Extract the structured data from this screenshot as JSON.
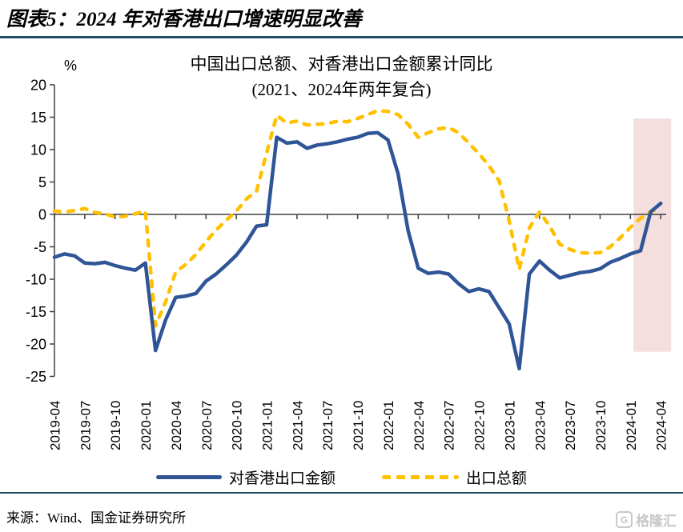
{
  "header": {
    "title": "图表5：2024 年对香港出口增速明显改善"
  },
  "chart_data": {
    "type": "line",
    "title_line1": "中国出口总额、对香港出口金额累计同比",
    "title_line2": "(2021、2024年两年复合)",
    "unit_label": "%",
    "ylim": [
      -25,
      20
    ],
    "ytick_step": 5,
    "grid": "off",
    "legend_position": "bottom",
    "x": [
      "2019-04",
      "2019-05",
      "2019-06",
      "2019-07",
      "2019-08",
      "2019-09",
      "2019-10",
      "2019-11",
      "2019-12",
      "2020-01",
      "2020-02",
      "2020-03",
      "2020-04",
      "2020-05",
      "2020-06",
      "2020-07",
      "2020-08",
      "2020-09",
      "2020-10",
      "2020-11",
      "2020-12",
      "2021-01",
      "2021-02",
      "2021-03",
      "2021-04",
      "2021-05",
      "2021-06",
      "2021-07",
      "2021-08",
      "2021-09",
      "2021-10",
      "2021-11",
      "2021-12",
      "2022-01",
      "2022-02",
      "2022-03",
      "2022-04",
      "2022-05",
      "2022-06",
      "2022-07",
      "2022-08",
      "2022-09",
      "2022-10",
      "2022-11",
      "2022-12",
      "2023-01",
      "2023-02",
      "2023-03",
      "2023-04",
      "2023-05",
      "2023-06",
      "2023-07",
      "2023-08",
      "2023-09",
      "2023-10",
      "2023-11",
      "2023-12",
      "2024-01",
      "2024-02",
      "2024-03",
      "2024-04"
    ],
    "x_tick_every_months": 3,
    "series": [
      {
        "name": "对香港出口金额",
        "color": "#2F5597",
        "style": "solid",
        "values": [
          -6.6,
          -6.1,
          -6.4,
          -7.5,
          -7.6,
          -7.4,
          -7.9,
          -8.3,
          -8.6,
          -7.5,
          -21.0,
          -16.3,
          -12.8,
          -12.6,
          -12.2,
          -10.3,
          -9.2,
          -7.8,
          -6.3,
          -4.3,
          -1.8,
          -1.6,
          11.9,
          11.0,
          11.2,
          10.2,
          10.7,
          10.9,
          11.2,
          11.6,
          11.9,
          12.5,
          12.6,
          11.5,
          6.3,
          -2.5,
          -8.3,
          -9.1,
          -8.9,
          -9.2,
          -10.7,
          -11.9,
          -11.5,
          -11.9,
          -14.4,
          -16.9,
          -23.8,
          -9.2,
          -7.2,
          -8.6,
          -9.8,
          -9.4,
          -9.0,
          -8.8,
          -8.4,
          -7.4,
          -6.8,
          -6.1,
          -5.6,
          0.4,
          1.7
        ]
      },
      {
        "name": "出口总额",
        "color": "#FFC000",
        "style": "dashed",
        "values": [
          0.5,
          0.4,
          0.6,
          0.9,
          0.3,
          0.1,
          -0.4,
          -0.3,
          0.1,
          0.5,
          -17.2,
          -13.5,
          -8.9,
          -7.7,
          -6.2,
          -4.2,
          -2.4,
          -0.9,
          0.5,
          2.4,
          3.6,
          9.5,
          15.3,
          14.1,
          14.4,
          13.8,
          13.9,
          14.0,
          14.4,
          14.3,
          14.8,
          15.4,
          16.0,
          15.9,
          15.4,
          13.9,
          11.9,
          12.6,
          13.2,
          13.4,
          12.6,
          11.0,
          9.4,
          7.5,
          5.2,
          -1.0,
          -8.5,
          -2.1,
          0.4,
          -1.8,
          -4.6,
          -5.4,
          -5.9,
          -6.0,
          -5.9,
          -5.0,
          -3.6,
          -2.0,
          -0.6,
          0.4,
          1.1
        ]
      }
    ],
    "highlight_band": {
      "start_month": "2024-01",
      "end_month": "2024-04",
      "color": "#F4DEDE"
    }
  },
  "legend": {
    "item1_label": "对香港出口金额",
    "item2_label": "出口总额"
  },
  "footer": {
    "source": "来源：Wind、国金证券研究所",
    "logo_text": "格隆汇",
    "logo_letter": "G"
  },
  "colors": {
    "accent_rule": "#1F4E5F",
    "axis": "#404040",
    "series_hk": "#2F5597",
    "series_total": "#FFC000",
    "band": "#F4DEDE",
    "logo_gray": "#c8c8c8"
  }
}
